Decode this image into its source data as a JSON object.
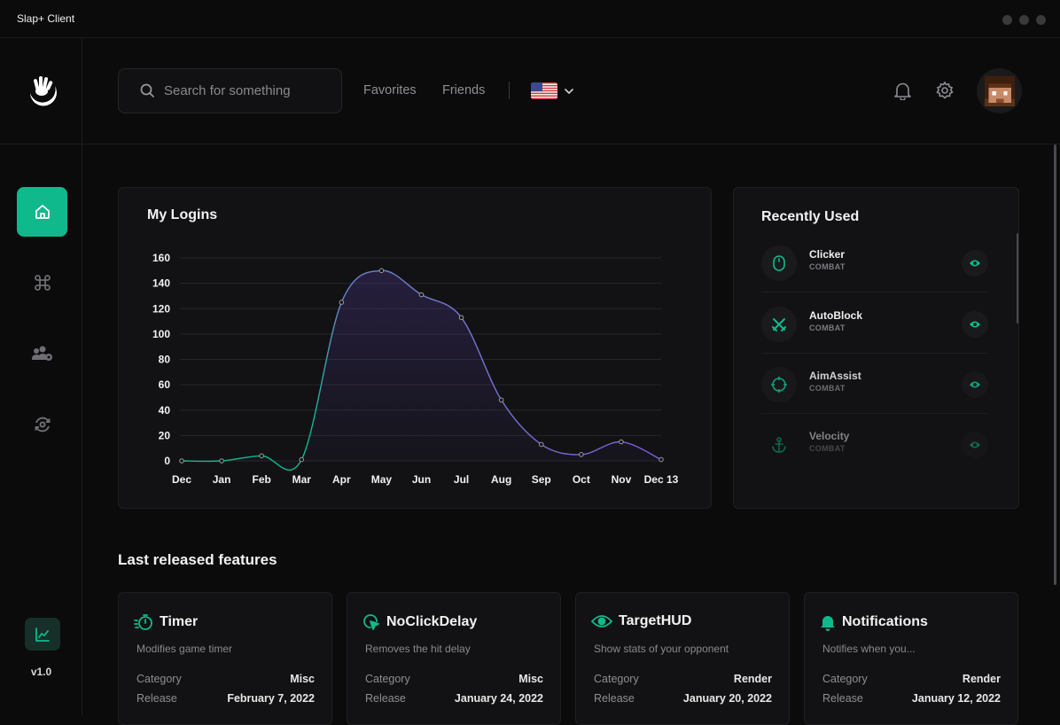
{
  "app": {
    "title": "Slap+ Client",
    "version": "v1.0"
  },
  "search": {
    "placeholder": "Search for something"
  },
  "nav": {
    "favorites": "Favorites",
    "friends": "Friends"
  },
  "icons": {
    "logo": "hand-moon-logo",
    "home": "home-icon",
    "command": "command-icon",
    "users": "users-gear-icon",
    "sync": "sync-icon",
    "stats": "chart-line-icon",
    "bell": "bell-icon",
    "settings": "gear-icon",
    "flag": "us-flag-icon"
  },
  "colors": {
    "accent": "#10b98c",
    "line_start": "#10b98c",
    "line_end": "#7c5cd6",
    "bg": "#0b0b0c",
    "card": "#121214"
  },
  "logins": {
    "title": "My Logins",
    "chart_data": {
      "type": "line",
      "title": "My Logins",
      "categories": [
        "Dec",
        "Jan",
        "Feb",
        "Mar",
        "Apr",
        "May",
        "Jun",
        "Jul",
        "Aug",
        "Sep",
        "Oct",
        "Nov",
        "Dec 13"
      ],
      "values": [
        0,
        0,
        4,
        1,
        125,
        150,
        131,
        113,
        48,
        13,
        5,
        15,
        1
      ],
      "yticks": [
        0,
        20,
        40,
        60,
        80,
        100,
        120,
        140,
        160
      ],
      "ylim": [
        0,
        160
      ],
      "grid": true,
      "smooth": true
    }
  },
  "recent": {
    "title": "Recently Used",
    "items": [
      {
        "name": "Clicker",
        "category": "COMBAT",
        "icon": "mouse-icon"
      },
      {
        "name": "AutoBlock",
        "category": "COMBAT",
        "icon": "swords-icon"
      },
      {
        "name": "AimAssist",
        "category": "COMBAT",
        "icon": "crosshair-icon"
      },
      {
        "name": "Velocity",
        "category": "COMBAT",
        "icon": "anchor-icon"
      }
    ]
  },
  "features": {
    "title": "Last released features",
    "category_label": "Category",
    "release_label": "Release",
    "items": [
      {
        "name": "Timer",
        "desc": "Modifies game timer",
        "category": "Misc",
        "release": "February 7, 2022",
        "icon": "stopwatch-icon"
      },
      {
        "name": "NoClickDelay",
        "desc": "Removes the hit delay",
        "category": "Misc",
        "release": "January 24, 2022",
        "icon": "cursor-click-icon"
      },
      {
        "name": "TargetHUD",
        "desc": "Show stats of your opponent",
        "category": "Render",
        "release": "January 20, 2022",
        "icon": "eye-icon"
      },
      {
        "name": "Notifications",
        "desc": "Notifies when you...",
        "category": "Render",
        "release": "January 12, 2022",
        "icon": "bell-icon"
      }
    ]
  }
}
